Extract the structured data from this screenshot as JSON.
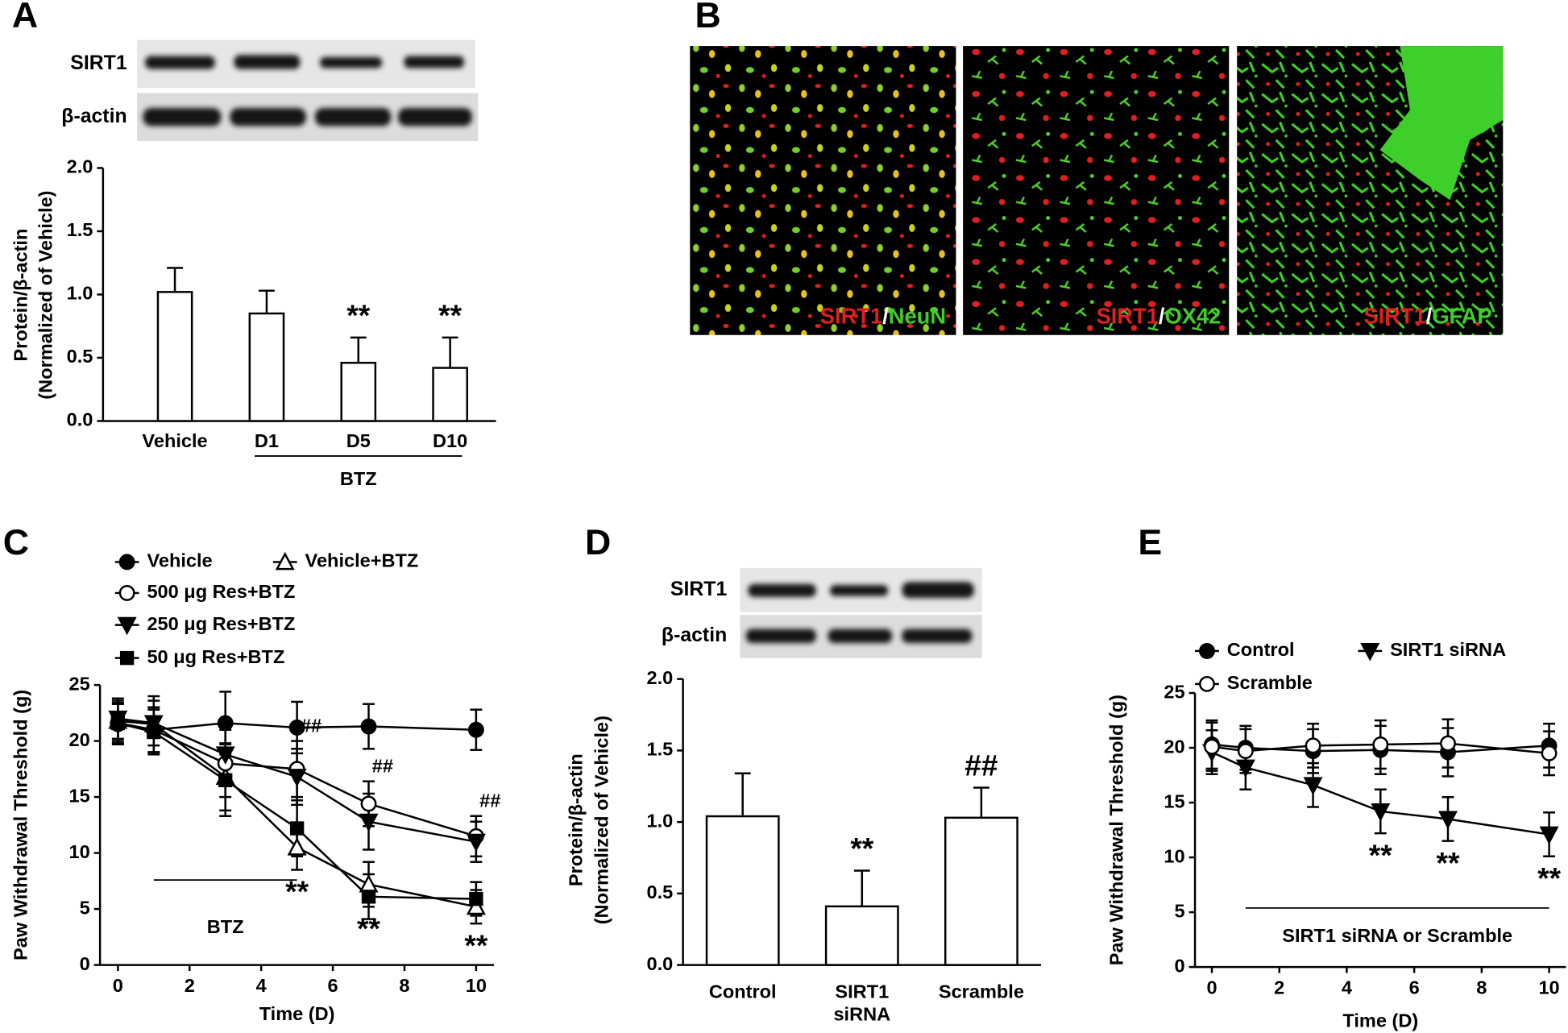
{
  "images": {
    "label": "B",
    "captions": [
      {
        "red": "SIRT1",
        "sep": "/",
        "green": "NeuN"
      },
      {
        "red": "SIRT1",
        "sep": "/",
        "green": "OX42"
      },
      {
        "red": "SIRT1",
        "sep": "/",
        "green": "GFAP"
      }
    ]
  },
  "chart_data": [
    {
      "type": "bar",
      "label": "A",
      "blot_labels": [
        "SIRT1",
        "β-actin"
      ],
      "ylabel": [
        "Protein/β-actin",
        "(Normalized of Vehicle)"
      ],
      "categories": [
        "Vehicle",
        "D1",
        "D5",
        "D10"
      ],
      "values": [
        1.02,
        0.85,
        0.46,
        0.42
      ],
      "errors": [
        0.19,
        0.18,
        0.2,
        0.24
      ],
      "value_annotations": [
        null,
        null,
        "**",
        "**"
      ],
      "group": {
        "label": "BTZ",
        "from": "D1",
        "to": "D10"
      },
      "color": "#ffffff",
      "ylim": [
        0,
        2
      ],
      "yticks": [
        {
          "value": 0,
          "label": "0.0"
        },
        0.5,
        {
          "value": 1,
          "label": "1.0"
        },
        1.5,
        {
          "value": 2,
          "label": "2.0"
        }
      ]
    },
    {
      "type": "line",
      "label": "C",
      "xlabel": "Time (D)",
      "ylabel": "Paw Withdrawal Threshold (g)",
      "x": [
        0,
        1,
        3,
        5,
        7,
        10
      ],
      "xlim": [
        -0.5,
        10.5
      ],
      "xticks": [
        0,
        2,
        4,
        6,
        8,
        10
      ],
      "ylim": [
        0,
        25
      ],
      "yticks": [
        0,
        5,
        10,
        15,
        20,
        25
      ],
      "span": {
        "label": "BTZ",
        "x": [
          1,
          5
        ]
      },
      "series": [
        {
          "name": "Vehicle",
          "color": "#000000",
          "marker": "circle-filled",
          "values": [
            21.5,
            21.0,
            21.6,
            21.2,
            21.3,
            21.0
          ],
          "errors": [
            1.8,
            2.0,
            2.8,
            2.3,
            2.0,
            1.8
          ]
        },
        {
          "name": "Vehicle+BTZ",
          "color": "#000000",
          "marker": "triangle-up-open",
          "values": [
            21.8,
            21.5,
            16.8,
            10.5,
            7.2,
            5.2
          ],
          "errors": [
            1.8,
            2.5,
            3.0,
            2.0,
            2.0,
            1.5
          ],
          "annotations": [
            null,
            null,
            null,
            "**",
            "**",
            "**"
          ]
        },
        {
          "name": "500 μg Res+BTZ",
          "color": "#000000",
          "marker": "circle-open",
          "values": [
            21.6,
            21.0,
            18.0,
            17.5,
            14.4,
            11.5
          ],
          "errors": [
            1.8,
            2.0,
            3.0,
            2.5,
            2.0,
            1.8
          ],
          "annotations": [
            null,
            null,
            null,
            "##",
            "##",
            "##"
          ]
        },
        {
          "name": "250 μg Res+BTZ",
          "color": "#000000",
          "marker": "triangle-down-filled",
          "values": [
            22.0,
            21.6,
            18.8,
            16.8,
            12.8,
            11.0
          ],
          "errors": [
            1.8,
            2.0,
            2.8,
            2.5,
            2.5,
            1.8
          ]
        },
        {
          "name": "50 μg Res+BTZ",
          "color": "#000000",
          "marker": "square-filled",
          "values": [
            21.6,
            20.8,
            16.5,
            12.2,
            6.1,
            5.9
          ],
          "errors": [
            1.8,
            2.0,
            3.2,
            2.5,
            2.0,
            1.5
          ]
        }
      ]
    },
    {
      "type": "bar",
      "label": "D",
      "blot_labels": [
        "SIRT1",
        "β-actin"
      ],
      "ylabel": [
        "Protein/β-actin",
        "(Normalized of Vehicle)"
      ],
      "categories": [
        "Control",
        "SIRT1\nsiRNA",
        "Scramble"
      ],
      "values": [
        1.04,
        0.41,
        1.03
      ],
      "errors": [
        0.3,
        0.25,
        0.21
      ],
      "value_annotations": [
        null,
        "**",
        "##"
      ],
      "color": "#ffffff",
      "ylim": [
        0,
        2
      ],
      "yticks": [
        {
          "value": 0,
          "label": "0.0"
        },
        0.5,
        {
          "value": 1,
          "label": "1.0"
        },
        1.5,
        {
          "value": 2,
          "label": "2.0"
        }
      ]
    },
    {
      "type": "line",
      "label": "E",
      "xlabel": "Time (D)",
      "ylabel": "Paw Withdrawal Threshold (g)",
      "x": [
        0,
        1,
        3,
        5,
        7,
        10
      ],
      "xlim": [
        -0.5,
        10.5
      ],
      "xticks": [
        0,
        2,
        4,
        6,
        8,
        10
      ],
      "ylim": [
        0,
        25
      ],
      "yticks": [
        0,
        5,
        10,
        15,
        20,
        25
      ],
      "span": {
        "label": "SIRT1 siRNA or Scramble",
        "x": [
          1,
          10
        ]
      },
      "series": [
        {
          "name": "Control",
          "color": "#000000",
          "marker": "circle-filled",
          "values": [
            20.3,
            20.0,
            19.7,
            19.8,
            19.6,
            20.2
          ],
          "errors": [
            2.2,
            2.0,
            2.0,
            2.2,
            2.2,
            2.0
          ]
        },
        {
          "name": "SIRT1 siRNA",
          "color": "#000000",
          "marker": "triangle-down-filled",
          "values": [
            19.6,
            18.2,
            16.6,
            14.2,
            13.5,
            12.1
          ],
          "errors": [
            2.0,
            2.0,
            2.0,
            2.0,
            2.0,
            2.0
          ],
          "annotations": [
            null,
            null,
            null,
            "**",
            "**",
            "**"
          ]
        },
        {
          "name": "Scramble",
          "color": "#000000",
          "marker": "circle-open",
          "values": [
            20.1,
            19.7,
            20.2,
            20.3,
            20.4,
            19.5
          ],
          "errors": [
            2.2,
            2.0,
            2.0,
            2.2,
            2.2,
            2.0
          ]
        }
      ]
    }
  ]
}
